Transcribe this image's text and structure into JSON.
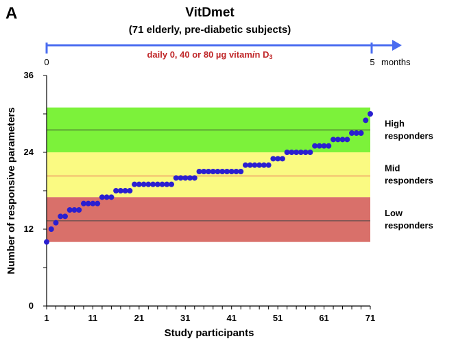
{
  "panel_letter": "A",
  "title": "VitDmet",
  "subtitle": "(71 elderly, pre-diabetic subjects)",
  "timeline": {
    "start_label": "0",
    "end_label": "5",
    "unit_label": "months",
    "treatment_prefix": "daily 0, 40 or 80 µg vitam",
    "treatment_italic": "i",
    "treatment_mid": "n D",
    "treatment_sub": "3",
    "arrow_color": "#4a6cf0",
    "treatment_color": "#c0282a"
  },
  "chart_data": {
    "type": "scatter",
    "xlabel": "Study participants",
    "ylabel": "Number of responsive parameters",
    "xlim": [
      1,
      71
    ],
    "ylim": [
      0,
      36
    ],
    "x_ticks": [
      1,
      11,
      21,
      31,
      41,
      51,
      61,
      71
    ],
    "y_ticks": [
      0,
      12,
      24,
      36
    ],
    "point_color": "#2a1fd0",
    "bands": [
      {
        "name": "high",
        "label_line1": "High",
        "label_line2": "responders",
        "y_from": 24,
        "y_to": 31,
        "line_at": 27.5,
        "fill": "#7cf23a",
        "line_color": "#333333"
      },
      {
        "name": "mid",
        "label_line1": "Mid",
        "label_line2": "responders",
        "y_from": 17,
        "y_to": 24,
        "line_at": 20.3,
        "fill": "#fafa82",
        "line_color": "#e35050"
      },
      {
        "name": "low",
        "label_line1": "Low",
        "label_line2": "responders",
        "y_from": 10,
        "y_to": 17,
        "line_at": 13.3,
        "fill": "#d9706a",
        "line_color": "#444444"
      }
    ],
    "x": [
      1,
      2,
      3,
      4,
      5,
      6,
      7,
      8,
      9,
      10,
      11,
      12,
      13,
      14,
      15,
      16,
      17,
      18,
      19,
      20,
      21,
      22,
      23,
      24,
      25,
      26,
      27,
      28,
      29,
      30,
      31,
      32,
      33,
      34,
      35,
      36,
      37,
      38,
      39,
      40,
      41,
      42,
      43,
      44,
      45,
      46,
      47,
      48,
      49,
      50,
      51,
      52,
      53,
      54,
      55,
      56,
      57,
      58,
      59,
      60,
      61,
      62,
      63,
      64,
      65,
      66,
      67,
      68,
      69,
      70,
      71
    ],
    "y": [
      10,
      12,
      13,
      14,
      14,
      15,
      15,
      15,
      16,
      16,
      16,
      16,
      17,
      17,
      17,
      18,
      18,
      18,
      18,
      19,
      19,
      19,
      19,
      19,
      19,
      19,
      19,
      19,
      20,
      20,
      20,
      20,
      20,
      21,
      21,
      21,
      21,
      21,
      21,
      21,
      21,
      21,
      21,
      22,
      22,
      22,
      22,
      22,
      22,
      23,
      23,
      23,
      24,
      24,
      24,
      24,
      24,
      24,
      25,
      25,
      25,
      25,
      26,
      26,
      26,
      26,
      27,
      27,
      27,
      29,
      30
    ]
  }
}
